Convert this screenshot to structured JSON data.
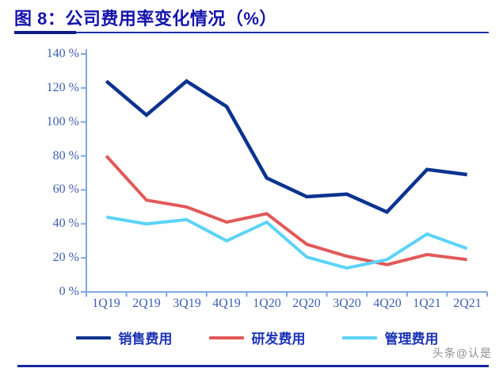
{
  "header": {
    "title": "图 8：公司费用率变化情况（%）"
  },
  "watermark": {
    "text": "头条@认是"
  },
  "chart_data": {
    "type": "line",
    "title": "公司费用率变化情况（%）",
    "categories": [
      "1Q19",
      "2Q19",
      "3Q19",
      "4Q19",
      "1Q20",
      "2Q20",
      "3Q20",
      "4Q20",
      "1Q21",
      "2Q21"
    ],
    "series": [
      {
        "name": "销售费用",
        "color": "#0C3390",
        "values": [
          124,
          104,
          124,
          109,
          67,
          56,
          57.5,
          47,
          72,
          69
        ]
      },
      {
        "name": "研发费用",
        "color": "#E25959",
        "values": [
          80,
          54,
          50,
          41,
          46,
          28,
          21,
          16,
          22,
          19
        ]
      },
      {
        "name": "管理费用",
        "color": "#5CD3F7",
        "values": [
          44,
          40,
          42.5,
          30,
          41,
          20.5,
          14,
          19,
          34,
          25.5
        ]
      }
    ],
    "ylim": [
      0,
      140
    ],
    "y_ticks": [
      140,
      120,
      100,
      80,
      60,
      40,
      20,
      0
    ],
    "y_tick_labels": [
      "140 %",
      "120 %",
      "100 %",
      "80 %",
      "60 %",
      "40 %",
      "20 %",
      "0 %"
    ],
    "xlabel": "",
    "ylabel": "",
    "grid": false,
    "legend_position": "bottom",
    "axis_color": "#7FA8DC",
    "tick_label_color": "#3C5FAE"
  }
}
